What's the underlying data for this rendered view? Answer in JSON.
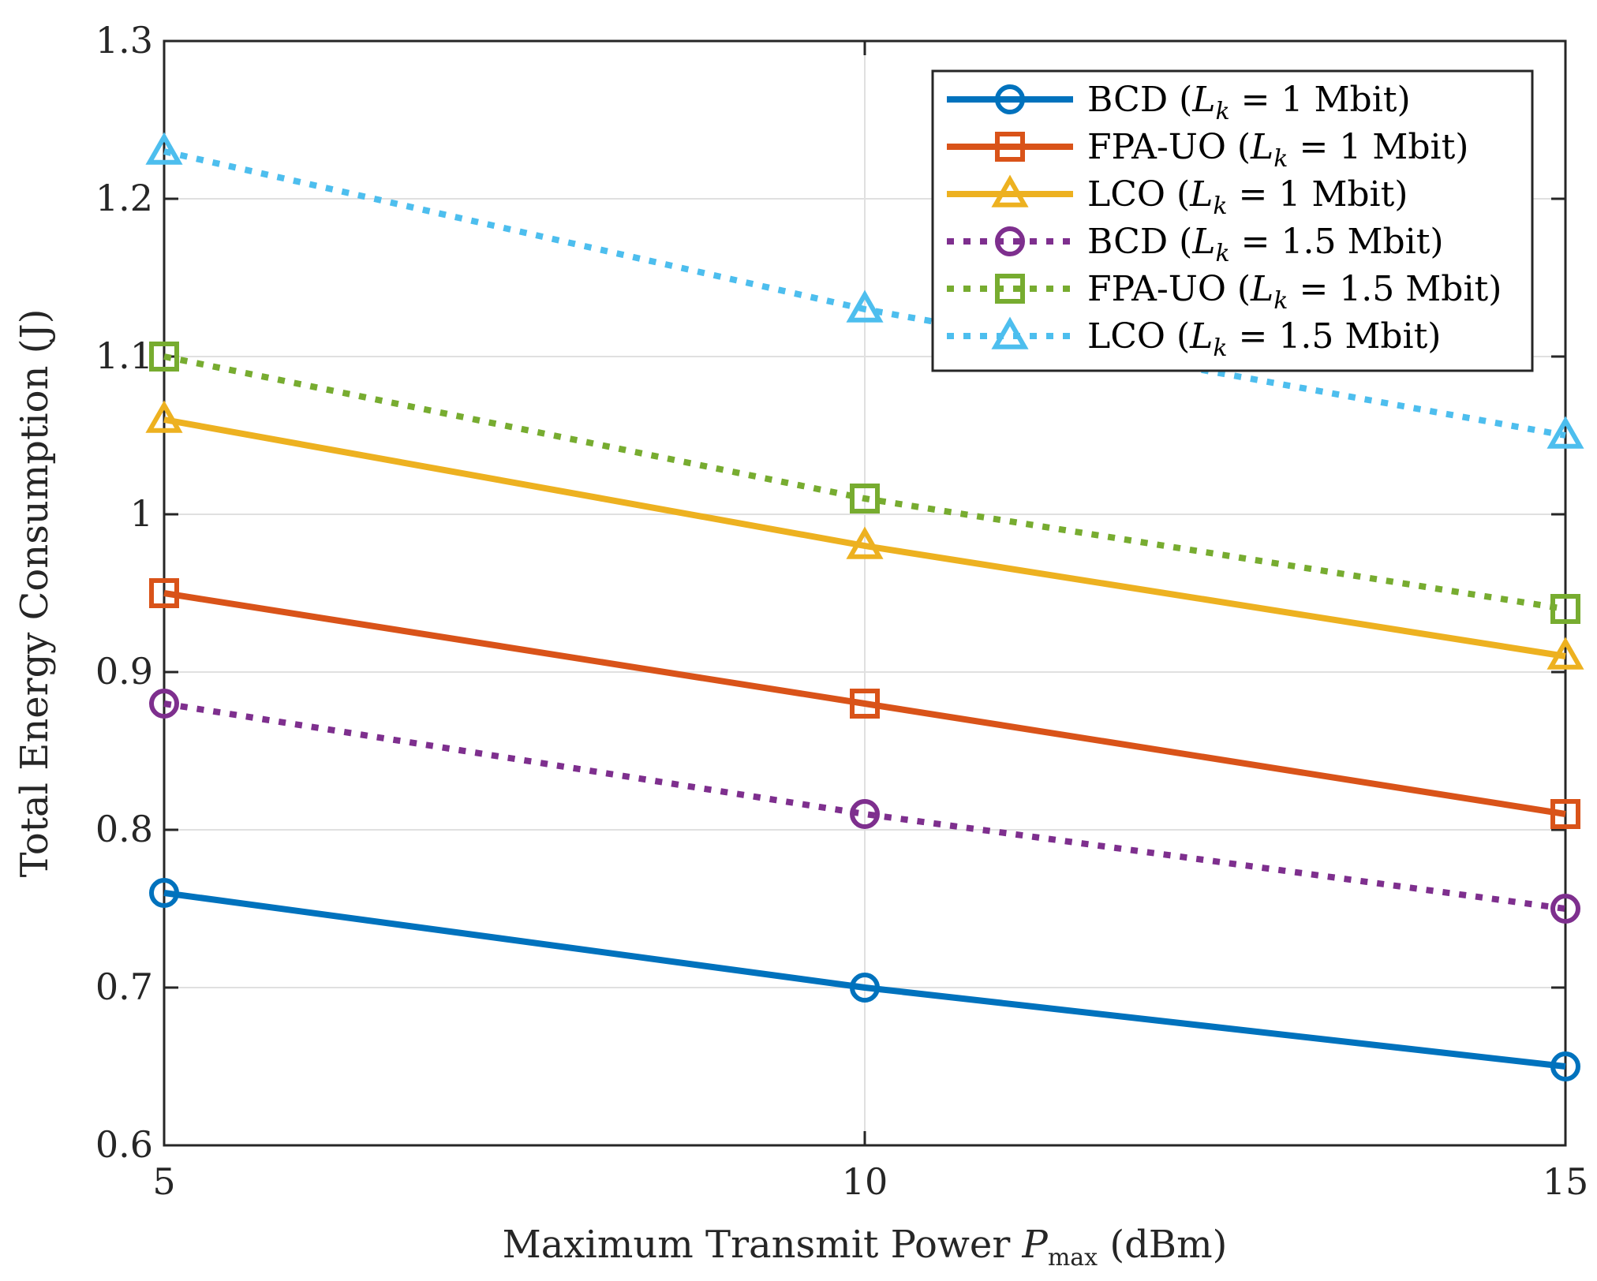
{
  "chart_data": {
    "type": "line",
    "x": [
      5,
      10,
      15
    ],
    "xlabel": {
      "prefix": "Maximum Transmit Power ",
      "symbol": "P",
      "subscript": "max",
      "suffix": " (dBm)"
    },
    "ylabel": "Total Energy Consumption (J)",
    "xlim": [
      5,
      15
    ],
    "ylim": [
      0.6,
      1.3
    ],
    "xticks": [
      "5",
      "10",
      "15"
    ],
    "yticks": [
      "0.6",
      "0.7",
      "0.8",
      "0.9",
      "1",
      "1.1",
      "1.2",
      "1.3"
    ],
    "grid": true,
    "legend_position": "top-right",
    "series": [
      {
        "name": "BCD (L_k = 1 Mbit)",
        "legend": {
          "pre": "BCD (",
          "var": "L",
          "sub": "k",
          "post": " = 1 Mbit)"
        },
        "values": [
          0.76,
          0.7,
          0.65
        ],
        "color": "#0072BD",
        "marker": "circle",
        "line": "solid"
      },
      {
        "name": "FPA-UO (L_k = 1 Mbit)",
        "legend": {
          "pre": "FPA-UO (",
          "var": "L",
          "sub": "k",
          "post": " = 1 Mbit)"
        },
        "values": [
          0.95,
          0.88,
          0.81
        ],
        "color": "#D95319",
        "marker": "square",
        "line": "solid"
      },
      {
        "name": "LCO (L_k = 1 Mbit)",
        "legend": {
          "pre": "LCO (",
          "var": "L",
          "sub": "k",
          "post": " = 1 Mbit)"
        },
        "values": [
          1.06,
          0.98,
          0.91
        ],
        "color": "#EDB120",
        "marker": "triangle",
        "line": "solid"
      },
      {
        "name": "BCD (L_k = 1.5 Mbit)",
        "legend": {
          "pre": "BCD (",
          "var": "L",
          "sub": "k",
          "post": " = 1.5 Mbit)"
        },
        "values": [
          0.88,
          0.81,
          0.75
        ],
        "color": "#7E2F8E",
        "marker": "circle",
        "line": "dotted"
      },
      {
        "name": "FPA-UO (L_k = 1.5 Mbit)",
        "legend": {
          "pre": "FPA-UO (",
          "var": "L",
          "sub": "k",
          "post": " = 1.5 Mbit)"
        },
        "values": [
          1.1,
          1.01,
          0.94
        ],
        "color": "#77AC30",
        "marker": "square",
        "line": "dotted"
      },
      {
        "name": "LCO (L_k = 1.5 Mbit)",
        "legend": {
          "pre": "LCO (",
          "var": "L",
          "sub": "k",
          "post": " = 1.5 Mbit)"
        },
        "values": [
          1.23,
          1.13,
          1.05
        ],
        "color": "#4DBEEE",
        "marker": "triangle",
        "line": "dotted"
      }
    ]
  }
}
